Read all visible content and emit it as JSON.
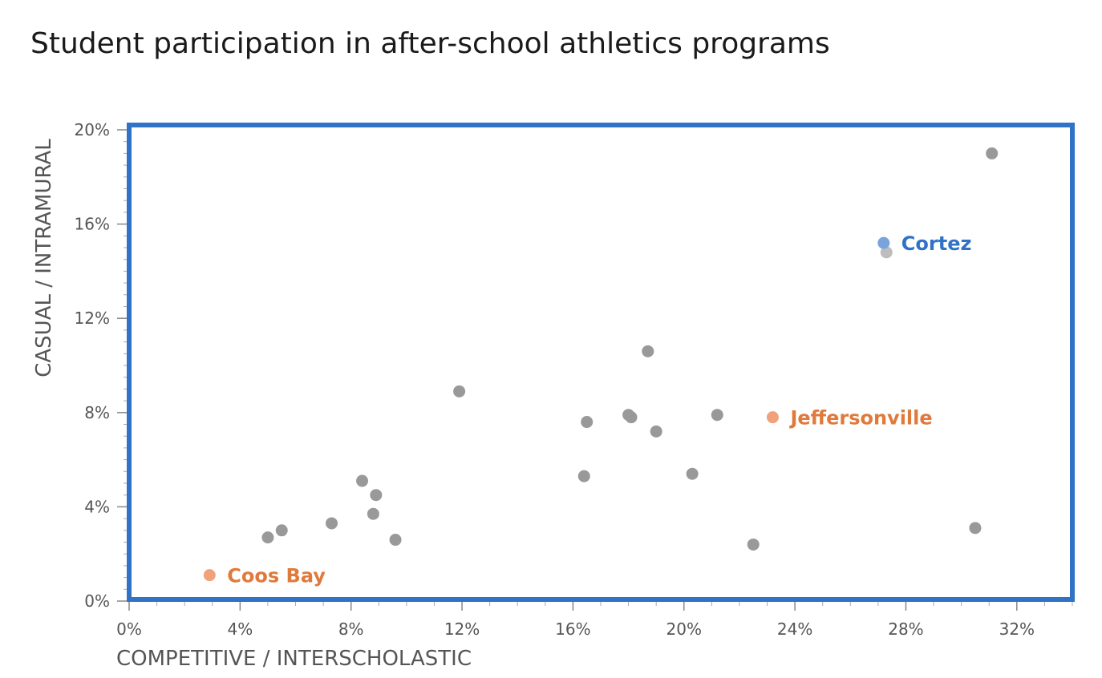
{
  "chart_data": {
    "type": "scatter",
    "title": "Student participation in after-school athletics programs",
    "xlabel": "COMPETITIVE / INTERSCHOLASTIC",
    "ylabel": "CASUAL / INTRAMURAL",
    "xlim": [
      0,
      34
    ],
    "ylim": [
      0,
      20
    ],
    "x_ticks": [
      0,
      4,
      8,
      12,
      16,
      20,
      24,
      28,
      32
    ],
    "x_tick_labels": [
      "0%",
      "4%",
      "8%",
      "12%",
      "16%",
      "20%",
      "24%",
      "28%",
      "32%"
    ],
    "y_ticks": [
      0,
      4,
      8,
      12,
      16,
      20
    ],
    "y_tick_labels": [
      "0%",
      "4%",
      "8%",
      "12%",
      "16%",
      "20%"
    ],
    "grid": false,
    "frame_color": "#2f72c6",
    "point_color": "#999999",
    "points": [
      {
        "x": 5.0,
        "y": 2.7
      },
      {
        "x": 5.5,
        "y": 3.0
      },
      {
        "x": 7.3,
        "y": 3.3
      },
      {
        "x": 8.4,
        "y": 5.1
      },
      {
        "x": 8.8,
        "y": 3.7
      },
      {
        "x": 8.9,
        "y": 4.5
      },
      {
        "x": 9.6,
        "y": 2.6
      },
      {
        "x": 11.9,
        "y": 8.9
      },
      {
        "x": 16.4,
        "y": 5.3
      },
      {
        "x": 16.5,
        "y": 7.6
      },
      {
        "x": 18.0,
        "y": 7.9
      },
      {
        "x": 18.1,
        "y": 7.8
      },
      {
        "x": 18.7,
        "y": 10.6
      },
      {
        "x": 19.0,
        "y": 7.2
      },
      {
        "x": 20.3,
        "y": 5.4
      },
      {
        "x": 21.2,
        "y": 7.9
      },
      {
        "x": 22.5,
        "y": 2.4
      },
      {
        "x": 27.3,
        "y": 14.8,
        "color": "#bdbdbd"
      },
      {
        "x": 30.5,
        "y": 3.1
      },
      {
        "x": 31.1,
        "y": 19.0
      }
    ],
    "highlights": [
      {
        "name": "Cortez",
        "x": 27.2,
        "y": 15.2,
        "color": "#7aa3dc",
        "label_color": "#2f72c6"
      },
      {
        "name": "Jeffersonville",
        "x": 23.2,
        "y": 7.8,
        "color": "#f0a27d",
        "label_color": "#e07a3c"
      },
      {
        "name": "Coos Bay",
        "x": 2.9,
        "y": 1.1,
        "color": "#f0a27d",
        "label_color": "#e07a3c"
      }
    ]
  }
}
